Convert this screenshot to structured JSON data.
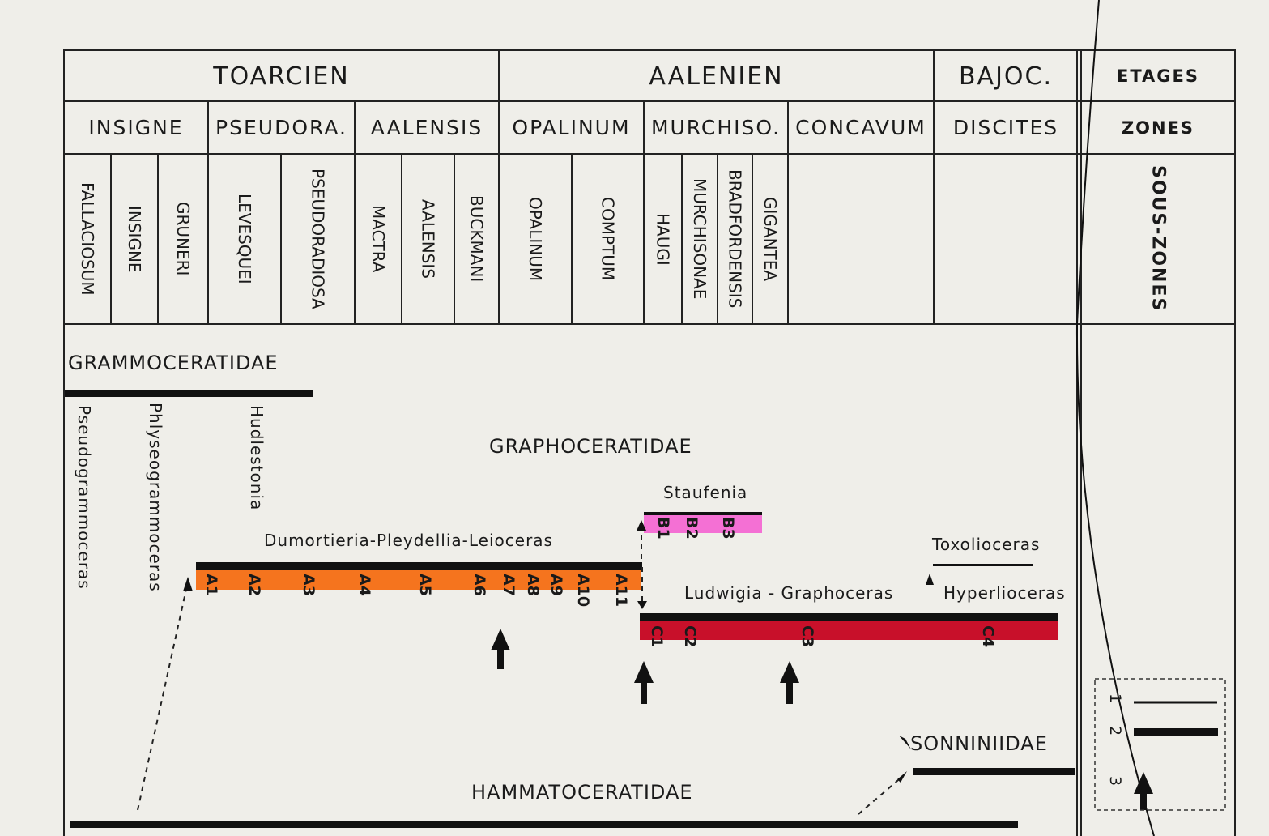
{
  "stages": [
    "TOARCIEN",
    "AALENIEN",
    "BAJOC.",
    "ETAGES"
  ],
  "zones": [
    "INSIGNE",
    "PSEUDORA.",
    "AALENSIS",
    "OPALINUM",
    "MURCHISO.",
    "CONCAVUM",
    "DISCITES",
    "ZONES"
  ],
  "subzones": [
    "FALLACIOSUM",
    "INSIGNE",
    "GRUNERI",
    "LEVESQUEI",
    "PSEUDORADIOSA",
    "MACTRA",
    "AALENSIS",
    "BUCKMANI",
    "OPALINUM",
    "COMPTUM",
    "HAUGI",
    "MURCHISONAE",
    "BRADFORDENSIS",
    "GIGANTEA"
  ],
  "subzones_header": "SOUS-ZONES",
  "families": {
    "grammoceratidae": "GRAMMOCERATIDAE",
    "graphoceratidae": "GRAPHOCERATIDAE",
    "sonniniidae": "SONNINIIDAE",
    "hammatoceratidae": "HAMMATOCERATIDAE"
  },
  "genera": {
    "pseudogrammoceras": "Pseudogrammoceras",
    "phlyseogrammoceras": "Phlyseogrammoceras",
    "hudlestonia": "Hudlestonia",
    "dpl": "Dumortieria-Pleydellia-Leioceras",
    "staufenia": "Staufenia",
    "toxolioceras": "Toxolioceras",
    "ludwigia": "Ludwigia - Graphoceras",
    "hyperlioceras": "Hyperlioceras"
  },
  "bars": {
    "A": {
      "color": "#f5741e",
      "labels": [
        "A1",
        "A2",
        "A3",
        "A4",
        "A5",
        "A6",
        "A7",
        "A8",
        "A9",
        "A10",
        "A11"
      ]
    },
    "B": {
      "color": "#f470d4",
      "labels": [
        "B1",
        "B2",
        "B3"
      ]
    },
    "C": {
      "color": "#c8102a",
      "labels": [
        "C1",
        "C2",
        "C3",
        "C4"
      ]
    }
  },
  "legend": [
    "1",
    "2",
    "3"
  ]
}
